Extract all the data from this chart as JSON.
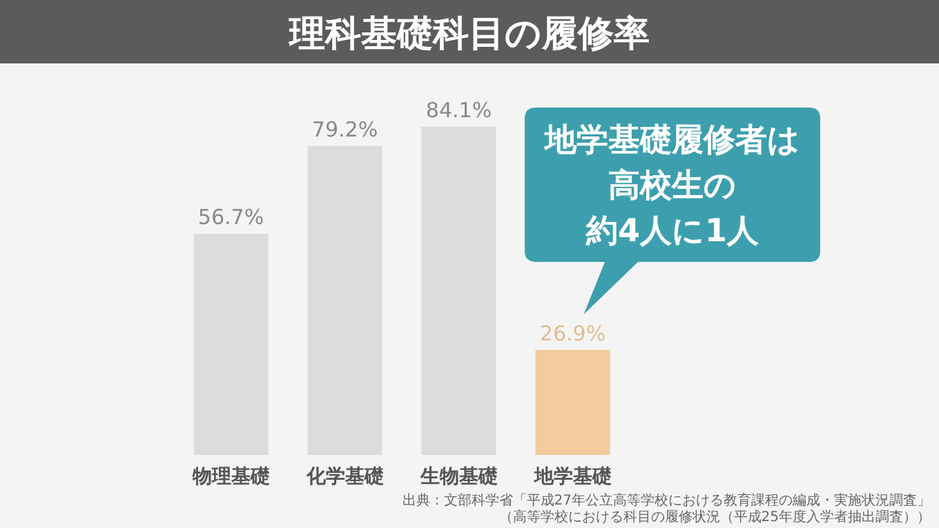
{
  "chart_data": {
    "type": "bar",
    "title": "理科基礎科目の履修率",
    "categories": [
      "物理基礎",
      "化学基礎",
      "生物基礎",
      "地学基礎"
    ],
    "values": [
      56.7,
      79.2,
      84.1,
      26.9
    ],
    "colors": [
      "#dcdcdc",
      "#dcdcdc",
      "#dcdcdc",
      "#f2cc9c"
    ],
    "value_labels": [
      "56.7%",
      "79.2%",
      "84.1%",
      "26.9%"
    ],
    "annotations": [
      "地学基礎履修者は",
      "高校生の",
      "約4人に1人",
      "出典：文部科学省「平成27年公立高等学校における教育課程の編成・実施状況調査」",
      "（高等学校における科目の履修状況（平成25年度入学者抽出調査））"
    ]
  }
}
